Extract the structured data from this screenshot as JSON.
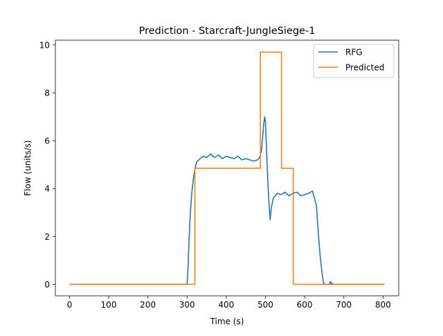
{
  "chart_data": {
    "type": "line",
    "title": "Prediction - Starcraft-JungleSiege-1",
    "xlabel": "Time (s)",
    "ylabel": "Flow (units/s)",
    "xlim": [
      -36,
      840
    ],
    "ylim": [
      -0.48,
      10.2
    ],
    "xticks": [
      0,
      100,
      200,
      300,
      400,
      500,
      600,
      700,
      800
    ],
    "yticks": [
      0,
      2,
      4,
      6,
      8,
      10
    ],
    "grid": false,
    "legend_position": "top-right",
    "series": [
      {
        "name": "RFG",
        "color": "#1f77b4",
        "x": [
          0,
          300,
          302,
          305,
          308,
          312,
          316,
          320,
          324,
          330,
          340,
          350,
          360,
          370,
          380,
          390,
          400,
          410,
          420,
          430,
          440,
          450,
          460,
          470,
          480,
          485,
          490,
          495,
          498,
          500,
          503,
          506,
          509,
          512,
          515,
          520,
          530,
          540,
          550,
          560,
          570,
          580,
          590,
          600,
          610,
          620,
          625,
          630,
          633,
          636,
          640,
          645,
          648,
          652,
          656,
          660,
          663,
          666,
          668,
          670,
          672,
          680,
          700,
          800
        ],
        "y": [
          0,
          0,
          0.5,
          1.8,
          2.9,
          3.8,
          4.4,
          4.8,
          5.1,
          5.2,
          5.35,
          5.3,
          5.45,
          5.3,
          5.4,
          5.25,
          5.35,
          5.3,
          5.25,
          5.35,
          5.2,
          5.25,
          5.2,
          5.15,
          5.2,
          5.3,
          5.6,
          6.6,
          7.0,
          6.8,
          5.5,
          4.3,
          3.4,
          2.7,
          3.2,
          3.6,
          3.8,
          3.75,
          3.85,
          3.7,
          3.8,
          3.85,
          3.7,
          3.75,
          3.8,
          3.9,
          3.6,
          3.3,
          2.6,
          1.9,
          1.1,
          0.4,
          0.05,
          0,
          0,
          0,
          0,
          0.12,
          0,
          0.05,
          0,
          0,
          0,
          0
        ]
      },
      {
        "name": "Predicted",
        "color": "#ff7f0e",
        "x": [
          0,
          320,
          320,
          487,
          487,
          541,
          541,
          571,
          571,
          804
        ],
        "y": [
          0,
          0,
          4.85,
          4.85,
          9.7,
          9.7,
          4.85,
          4.85,
          0,
          0
        ]
      }
    ]
  }
}
